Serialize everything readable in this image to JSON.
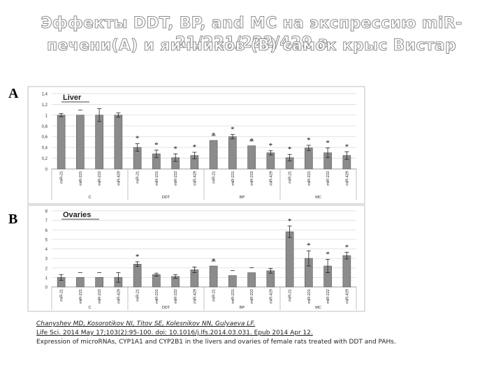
{
  "title": {
    "line1": "Эффекты DDT, BP, and MC на экспрессию miR-21/221/222/429 в",
    "line2": "печени(А) и яичников (В) самок крыс Вистар"
  },
  "panels": {
    "a": "A",
    "b": "B"
  },
  "citation": {
    "authors": "Chanyshev MD, Kosorotikov NI, Titov SE, Kolesnikov NN, Gulyaeva LF.",
    "source": "Life Sci. 2014 May 17;103(2):95-100. doi: 10.1016/j.lfs.2014.03.031. Epub 2014 Apr 12.",
    "title": "Expression of microRNAs, CYP1A1 and CYP2B1 in the livers and ovaries of female rats treated with DDT and PAHs."
  },
  "colors": {
    "bar": "#8c8c8c",
    "bar_stroke": "#555555",
    "grid": "#d9d9d9",
    "star": "#000000"
  },
  "chart_data": [
    {
      "type": "bar",
      "title": "Liver",
      "categories": [
        "miR-21",
        "miR-221",
        "miR-222",
        "miR-429",
        "miR-21",
        "miR-221",
        "miR-222",
        "miR-429",
        "miR-21",
        "miR-221",
        "miR-222",
        "miR-429",
        "miR-21",
        "miR-221",
        "miR-222",
        "miR-429"
      ],
      "groups": [
        "C",
        "DDT",
        "BP",
        "MC"
      ],
      "values": [
        1.0,
        1.0,
        1.0,
        1.0,
        0.4,
        0.28,
        0.21,
        0.25,
        0.53,
        0.6,
        0.43,
        0.3,
        0.21,
        0.39,
        0.3,
        0.25
      ],
      "errors": [
        0.03,
        0.0,
        0.12,
        0.04,
        0.07,
        0.07,
        0.07,
        0.06,
        0.0,
        0.04,
        0.0,
        0.04,
        0.06,
        0.05,
        0.09,
        0.07
      ],
      "significant": [
        false,
        false,
        false,
        false,
        true,
        true,
        true,
        true,
        true,
        true,
        true,
        true,
        true,
        true,
        true,
        true
      ],
      "ylim": [
        0,
        1.4
      ],
      "yticks": [
        "0",
        "0,2",
        "0,4",
        "0,6",
        "0,8",
        "1",
        "1,2",
        "1,4"
      ],
      "grid": true
    },
    {
      "type": "bar",
      "title": "Ovaries",
      "categories": [
        "miR-21",
        "miR-221",
        "miR-222",
        "miR-429",
        "miR-21",
        "miR-221",
        "miR-222",
        "miR-429",
        "miR-21",
        "miR-221",
        "miR-222",
        "miR-429",
        "miR-21",
        "miR-221",
        "miR-222",
        "miR-429"
      ],
      "groups": [
        "C",
        "DDT",
        "BP",
        "MC"
      ],
      "values": [
        1.0,
        1.0,
        1.0,
        1.0,
        2.4,
        1.3,
        1.1,
        1.8,
        2.2,
        1.2,
        1.5,
        1.7,
        5.8,
        3.0,
        2.2,
        3.3
      ],
      "errors": [
        0.3,
        0.0,
        0.0,
        0.5,
        0.25,
        0.15,
        0.2,
        0.3,
        0.0,
        0.0,
        0.0,
        0.25,
        0.6,
        0.8,
        0.7,
        0.35
      ],
      "significant": [
        false,
        false,
        false,
        false,
        true,
        false,
        false,
        false,
        true,
        false,
        false,
        false,
        true,
        true,
        true,
        true
      ],
      "ylim": [
        0,
        8
      ],
      "yticks": [
        "0",
        "1",
        "2",
        "3",
        "4",
        "5",
        "6",
        "7",
        "8"
      ],
      "grid": true
    }
  ]
}
